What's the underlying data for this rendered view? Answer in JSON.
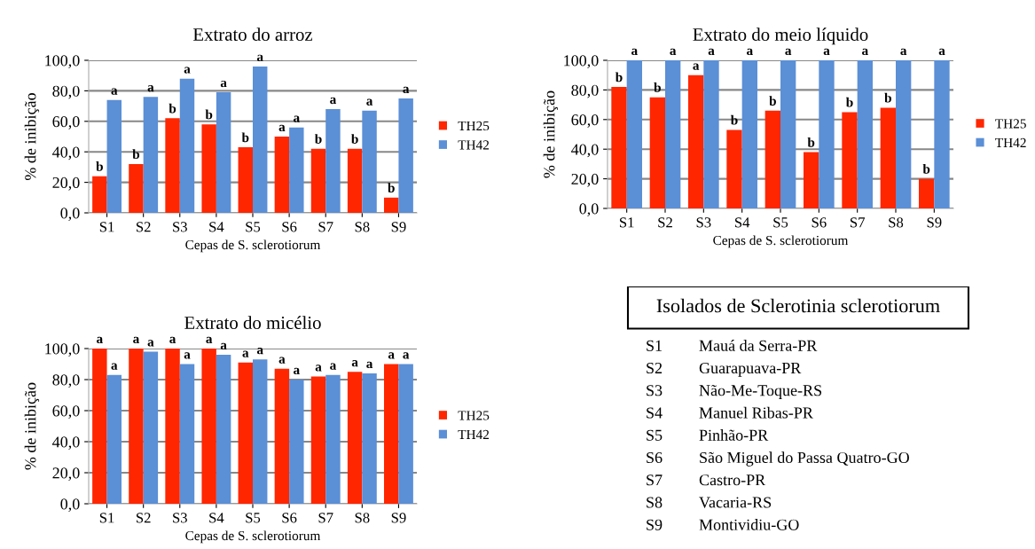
{
  "chart_data": [
    {
      "type": "bar",
      "title": "Extrato do arroz",
      "xlabel": "Cepas de S. sclerotiorum",
      "ylabel": "% de inibição",
      "categories": [
        "S1",
        "S2",
        "S3",
        "S4",
        "S5",
        "S6",
        "S7",
        "S8",
        "S9"
      ],
      "series": [
        {
          "name": "TH25",
          "color": "#ff2600",
          "values": [
            24,
            32,
            62,
            58,
            43,
            50,
            42,
            42,
            10
          ],
          "value_labels": [
            "b",
            "b",
            "b",
            "b",
            "b",
            "a",
            "b",
            "b",
            "b"
          ]
        },
        {
          "name": "TH42",
          "color": "#5b8fd6",
          "values": [
            74,
            76,
            88,
            79,
            96,
            56,
            68,
            67,
            75
          ],
          "value_labels": [
            "a",
            "a",
            "a",
            "a",
            "a",
            "a",
            "a",
            "a",
            "a"
          ]
        }
      ],
      "ylim": [
        0,
        100
      ],
      "yticks": [
        {
          "value": 0,
          "label": "0,0"
        },
        {
          "value": 20,
          "label": "20,0"
        },
        {
          "value": 40,
          "label": "40,0"
        },
        {
          "value": 60,
          "label": "60,0"
        },
        {
          "value": 80,
          "label": "80,0"
        },
        {
          "value": 100,
          "label": "100,0"
        }
      ],
      "grid": "y",
      "legend": "right"
    },
    {
      "type": "bar",
      "title": "Extrato do meio líquido",
      "xlabel": "Cepas de S. sclerotiorum",
      "ylabel": "% de inibição",
      "categories": [
        "S1",
        "S2",
        "S3",
        "S4",
        "S5",
        "S6",
        "S7",
        "S8",
        "S9"
      ],
      "series": [
        {
          "name": "TH25",
          "color": "#ff2600",
          "values": [
            82,
            75,
            90,
            53,
            66,
            38,
            65,
            68,
            20
          ],
          "value_labels": [
            "b",
            "b",
            "a",
            "b",
            "b",
            "b",
            "b",
            "b",
            "b"
          ]
        },
        {
          "name": "TH42",
          "color": "#5b8fd6",
          "values": [
            100,
            100,
            100,
            100,
            100,
            100,
            100,
            100,
            100
          ],
          "value_labels": [
            "a",
            "a",
            "a",
            "a",
            "a",
            "a",
            "a",
            "a",
            "a"
          ]
        }
      ],
      "ylim": [
        0,
        100
      ],
      "yticks": [
        {
          "value": 0,
          "label": "0,0"
        },
        {
          "value": 20,
          "label": "20,0"
        },
        {
          "value": 40,
          "label": "40,0"
        },
        {
          "value": 60,
          "label": "60,0"
        },
        {
          "value": 80,
          "label": "80,0"
        },
        {
          "value": 100,
          "label": "100,0"
        }
      ],
      "grid": "y",
      "legend": "right"
    },
    {
      "type": "bar",
      "title": "Extrato do micélio",
      "xlabel": "Cepas de S. sclerotiorum",
      "ylabel": "% de inibição",
      "categories": [
        "S1",
        "S2",
        "S3",
        "S4",
        "S5",
        "S6",
        "S7",
        "S8",
        "S9"
      ],
      "series": [
        {
          "name": "TH25",
          "color": "#ff2600",
          "values": [
            100,
            100,
            100,
            100,
            91,
            87,
            82,
            85,
            90
          ],
          "value_labels": [
            "a",
            "a",
            "a",
            "a",
            "a",
            "a",
            "a",
            "a",
            "a"
          ]
        },
        {
          "name": "TH42",
          "color": "#5b8fd6",
          "values": [
            83,
            98,
            90,
            96,
            93,
            80,
            83,
            84,
            90
          ],
          "value_labels": [
            "a",
            "a",
            "a",
            "a",
            "a",
            "a",
            "a",
            "a",
            "a"
          ]
        }
      ],
      "ylim": [
        0,
        100
      ],
      "yticks": [
        {
          "value": 0,
          "label": "0,0"
        },
        {
          "value": 20,
          "label": "20,0"
        },
        {
          "value": 40,
          "label": "40,0"
        },
        {
          "value": 60,
          "label": "60,0"
        },
        {
          "value": 80,
          "label": "80,0"
        },
        {
          "value": 100,
          "label": "100,0"
        }
      ],
      "grid": "y",
      "legend": "right"
    },
    {
      "type": "other",
      "title": "Isolados de Sclerotinia sclerotiorum",
      "annotations": [
        "S1\tMauá da Serra-PR",
        "S2\tGuarapuava-PR",
        "S3\tNão-Me-Toque-RS",
        "S4\tManuel Ribas-PR",
        "S5\tPinhão-PR",
        "S6\tSão Miguel do Passa Quatro-GO",
        "S7\tCastro-PR",
        "S8\tVacaria-RS",
        "S9\tMontividiu-GO"
      ]
    }
  ]
}
